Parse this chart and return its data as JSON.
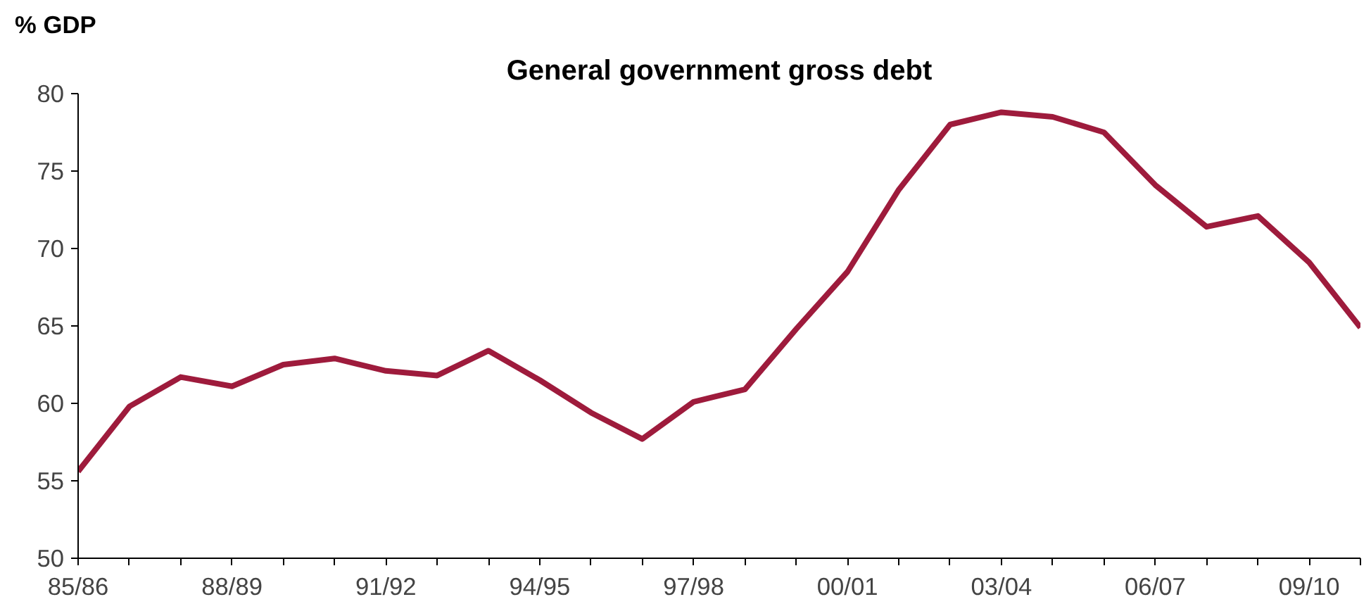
{
  "chart_data": {
    "type": "line",
    "title": "General government gross debt",
    "ylabel": "% GDP",
    "categories": [
      "85/86",
      null,
      null,
      "88/89",
      null,
      null,
      "91/92",
      null,
      null,
      "94/95",
      null,
      null,
      "97/98",
      null,
      null,
      "00/01",
      null,
      null,
      "03/04",
      null,
      null,
      "06/07",
      null,
      null,
      "09/10",
      null
    ],
    "series": [
      {
        "color": "#9e1b3c",
        "values": [
          55.6,
          59.8,
          61.7,
          61.1,
          62.5,
          62.9,
          62.1,
          61.8,
          63.4,
          61.5,
          59.4,
          57.7,
          60.1,
          60.9,
          64.8,
          68.5,
          73.8,
          78.0,
          78.8,
          78.5,
          77.5,
          74.1,
          71.4,
          72.1,
          69.1,
          64.9
        ]
      }
    ],
    "ylim": [
      50,
      80
    ],
    "yticks": [
      50,
      55,
      60,
      65,
      70,
      75,
      80
    ],
    "grid": false,
    "marker": "none",
    "line_style": "solid"
  }
}
